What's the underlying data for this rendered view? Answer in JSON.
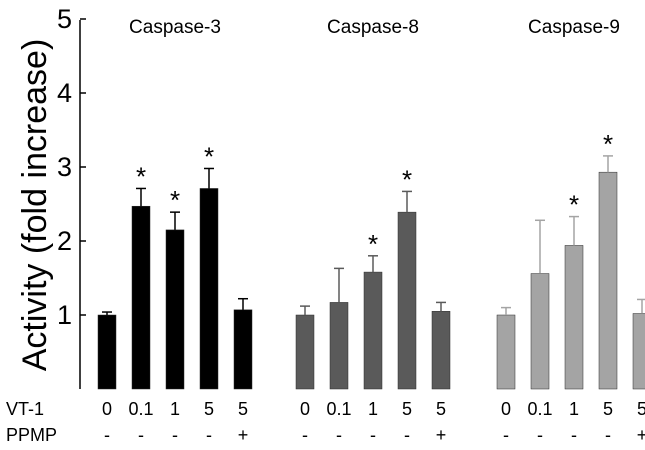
{
  "chart_data": {
    "type": "bar",
    "ylabel": "Activity (fold increase)",
    "ylim": [
      0,
      5
    ],
    "yticks": [
      1,
      2,
      3,
      4,
      5
    ],
    "row_labels": [
      "VT-1",
      "PPMP"
    ],
    "categories": [
      {
        "vt1": "0",
        "ppmp": "-"
      },
      {
        "vt1": "0.1",
        "ppmp": "-"
      },
      {
        "vt1": "1",
        "ppmp": "-"
      },
      {
        "vt1": "5",
        "ppmp": "-"
      },
      {
        "vt1": "5",
        "ppmp": "+"
      }
    ],
    "significance_marker": "*",
    "groups": [
      {
        "name": "Caspase-3",
        "color": "#000000",
        "values": [
          1.0,
          2.47,
          2.15,
          2.71,
          1.07
        ],
        "errors": [
          0.04,
          0.24,
          0.24,
          0.27,
          0.15
        ],
        "significant": [
          false,
          true,
          true,
          true,
          false
        ]
      },
      {
        "name": "Caspase-8",
        "color": "#5a5a5a",
        "values": [
          1.0,
          1.17,
          1.58,
          2.39,
          1.05
        ],
        "errors": [
          0.12,
          0.46,
          0.22,
          0.28,
          0.12
        ],
        "significant": [
          false,
          false,
          true,
          true,
          false
        ]
      },
      {
        "name": "Caspase-9",
        "color": "#a4a4a4",
        "values": [
          1.0,
          1.56,
          1.94,
          2.93,
          1.02
        ],
        "errors": [
          0.1,
          0.72,
          0.39,
          0.22,
          0.19
        ],
        "significant": [
          false,
          false,
          true,
          true,
          false
        ]
      }
    ]
  }
}
